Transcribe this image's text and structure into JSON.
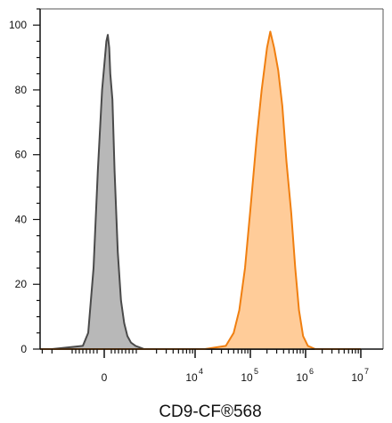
{
  "chart_data": {
    "type": "area",
    "title": "",
    "xlabel": "CD9-CF®568",
    "ylabel": "",
    "ylim": [
      0,
      105
    ],
    "grid": false,
    "legend": "none",
    "x_scale": "biexponential",
    "x_ticks": [
      {
        "label": "0",
        "exp": "",
        "x": 0
      },
      {
        "label": "10",
        "exp": "4",
        "x": 10000
      },
      {
        "label": "10",
        "exp": "5",
        "x": 100000
      },
      {
        "label": "10",
        "exp": "6",
        "x": 1000000
      },
      {
        "label": "10",
        "exp": "7",
        "x": 10000000
      }
    ],
    "y_ticks": [
      0,
      20,
      40,
      60,
      80,
      100
    ],
    "series": [
      {
        "fill": "#b8b8b8",
        "stroke": "#4a4a4a",
        "points": [
          [
            -20000,
            0
          ],
          [
            -2000,
            0
          ],
          [
            -600,
            1
          ],
          [
            -450,
            5
          ],
          [
            -300,
            25
          ],
          [
            -180,
            55
          ],
          [
            -60,
            80
          ],
          [
            20,
            90
          ],
          [
            60,
            95
          ],
          [
            100,
            97
          ],
          [
            140,
            93
          ],
          [
            170,
            85
          ],
          [
            230,
            77
          ],
          [
            290,
            55
          ],
          [
            380,
            30
          ],
          [
            470,
            15
          ],
          [
            560,
            8
          ],
          [
            650,
            4
          ],
          [
            750,
            2
          ],
          [
            880,
            1
          ],
          [
            1200,
            0
          ],
          [
            10000000,
            0
          ]
        ]
      },
      {
        "fill": "#ffcc99",
        "stroke": "#f07f10",
        "points": [
          [
            -20000,
            0
          ],
          [
            15000,
            0
          ],
          [
            36000,
            1
          ],
          [
            50000,
            5
          ],
          [
            63000,
            12
          ],
          [
            80000,
            25
          ],
          [
            100000,
            43
          ],
          [
            130000,
            65
          ],
          [
            160000,
            80
          ],
          [
            200000,
            93
          ],
          [
            230000,
            98
          ],
          [
            270000,
            93
          ],
          [
            320000,
            86
          ],
          [
            380000,
            75
          ],
          [
            450000,
            58
          ],
          [
            550000,
            42
          ],
          [
            650000,
            25
          ],
          [
            760000,
            12
          ],
          [
            900000,
            4
          ],
          [
            1100000,
            1
          ],
          [
            1500000,
            0
          ],
          [
            10000000,
            0
          ]
        ]
      }
    ]
  }
}
